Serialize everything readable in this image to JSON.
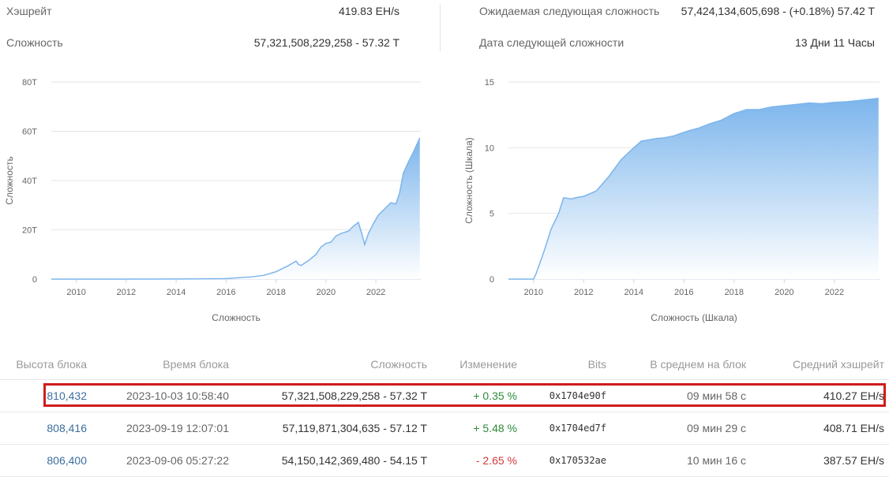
{
  "stats": {
    "hashrate_label": "Хэшрейт",
    "hashrate_value": "419.83 EH/s",
    "difficulty_label": "Сложность",
    "difficulty_value": "57,321,508,229,258 - 57.32 T",
    "next_difficulty_label": "Ожидаемая следующая сложность",
    "next_difficulty_value": "57,424,134,605,698 - (+0.18%) 57.42 T",
    "next_date_label": "Дата следующей сложности",
    "next_date_value": "13 Дни 11 Часы"
  },
  "colors": {
    "area_top": "#7cb5ec",
    "area_bottom": "#ffffff",
    "grid": "#e6e6e6",
    "axis_text": "#666666",
    "highlight": "#d01c1c",
    "positive": "#2e8b3a",
    "negative": "#d33a3a",
    "link": "#3c6e9e"
  },
  "chart_data": [
    {
      "type": "area",
      "title": "",
      "xlabel": "Сложность",
      "ylabel": "Сложность",
      "yticks": [
        "0",
        "20T",
        "40T",
        "60T",
        "80T"
      ],
      "xticks": [
        "2010",
        "2012",
        "2014",
        "2016",
        "2018",
        "2020",
        "2022"
      ],
      "xlim": [
        2009.0,
        2023.8
      ],
      "ylim": [
        0,
        80
      ],
      "grid": true,
      "series": [
        {
          "x": [
            2009.0,
            2012.0,
            2014.0,
            2016.0,
            2017.0,
            2017.5,
            2018.0,
            2018.5,
            2018.8,
            2018.9,
            2019.0,
            2019.3,
            2019.6,
            2019.8,
            2020.0,
            2020.2,
            2020.4,
            2020.6,
            2020.9,
            2021.1,
            2021.3,
            2021.45,
            2021.55,
            2021.7,
            2021.9,
            2022.1,
            2022.4,
            2022.6,
            2022.8,
            2022.95,
            2023.1,
            2023.3,
            2023.5,
            2023.76
          ],
          "values": [
            0,
            0,
            0.03,
            0.2,
            0.9,
            1.5,
            3.0,
            5.5,
            7.3,
            6.0,
            5.5,
            7.5,
            10.0,
            13.0,
            14.5,
            15.0,
            17.5,
            18.5,
            19.5,
            21.5,
            23.0,
            18.0,
            14.0,
            18.5,
            22.5,
            26.0,
            29.0,
            31.0,
            30.5,
            35.0,
            43.0,
            47.5,
            51.5,
            57.32
          ]
        }
      ]
    },
    {
      "type": "area",
      "title": "",
      "xlabel": "Сложность (Шкала)",
      "ylabel": "Сложность (Шкала)",
      "yticks": [
        "0",
        "5",
        "10",
        "15"
      ],
      "xticks": [
        "2010",
        "2012",
        "2014",
        "2016",
        "2018",
        "2020",
        "2022"
      ],
      "xlim": [
        2009.0,
        2023.8
      ],
      "ylim": [
        0,
        15
      ],
      "grid": true,
      "series": [
        {
          "x": [
            2009.0,
            2010.0,
            2010.1,
            2010.4,
            2010.7,
            2011.0,
            2011.2,
            2011.5,
            2011.7,
            2012.0,
            2012.5,
            2013.0,
            2013.5,
            2014.0,
            2014.3,
            2014.6,
            2014.9,
            2015.2,
            2015.6,
            2015.9,
            2016.2,
            2016.6,
            2017.0,
            2017.5,
            2018.0,
            2018.5,
            2019.0,
            2019.5,
            2020.0,
            2020.5,
            2021.0,
            2021.5,
            2022.0,
            2022.5,
            2023.0,
            2023.5,
            2023.76
          ],
          "values": [
            0,
            0,
            0.4,
            2.0,
            3.8,
            5.0,
            6.2,
            6.1,
            6.2,
            6.3,
            6.7,
            7.8,
            9.1,
            10.0,
            10.5,
            10.6,
            10.7,
            10.75,
            10.9,
            11.1,
            11.3,
            11.5,
            11.8,
            12.1,
            12.6,
            12.9,
            12.9,
            13.1,
            13.2,
            13.3,
            13.4,
            13.35,
            13.45,
            13.5,
            13.6,
            13.7,
            13.76
          ]
        }
      ]
    }
  ],
  "table": {
    "headers": [
      "Высота блока",
      "Время блока",
      "Сложность",
      "Изменение",
      "Bits",
      "В среднем на блок",
      "Средний хэшрейт"
    ],
    "rows": [
      {
        "height": "810,432",
        "time": "2023-10-03 10:58:40",
        "difficulty": "57,321,508,229,258 - 57.32 T",
        "change": "+ 0.35 %",
        "bits": "0x1704e90f",
        "avg_block": "09 мин 58 с",
        "avg_hash": "410.27 EH/s"
      },
      {
        "height": "808,416",
        "time": "2023-09-19 12:07:01",
        "difficulty": "57,119,871,304,635 - 57.12 T",
        "change": "+ 5.48 %",
        "bits": "0x1704ed7f",
        "avg_block": "09 мин 29 с",
        "avg_hash": "408.71 EH/s"
      },
      {
        "height": "806,400",
        "time": "2023-09-06 05:27:22",
        "difficulty": "54,150,142,369,480 - 54.15 T",
        "change": "- 2.65 %",
        "bits": "0x170532ae",
        "avg_block": "10 мин 16 с",
        "avg_hash": "387.57 EH/s"
      }
    ]
  }
}
